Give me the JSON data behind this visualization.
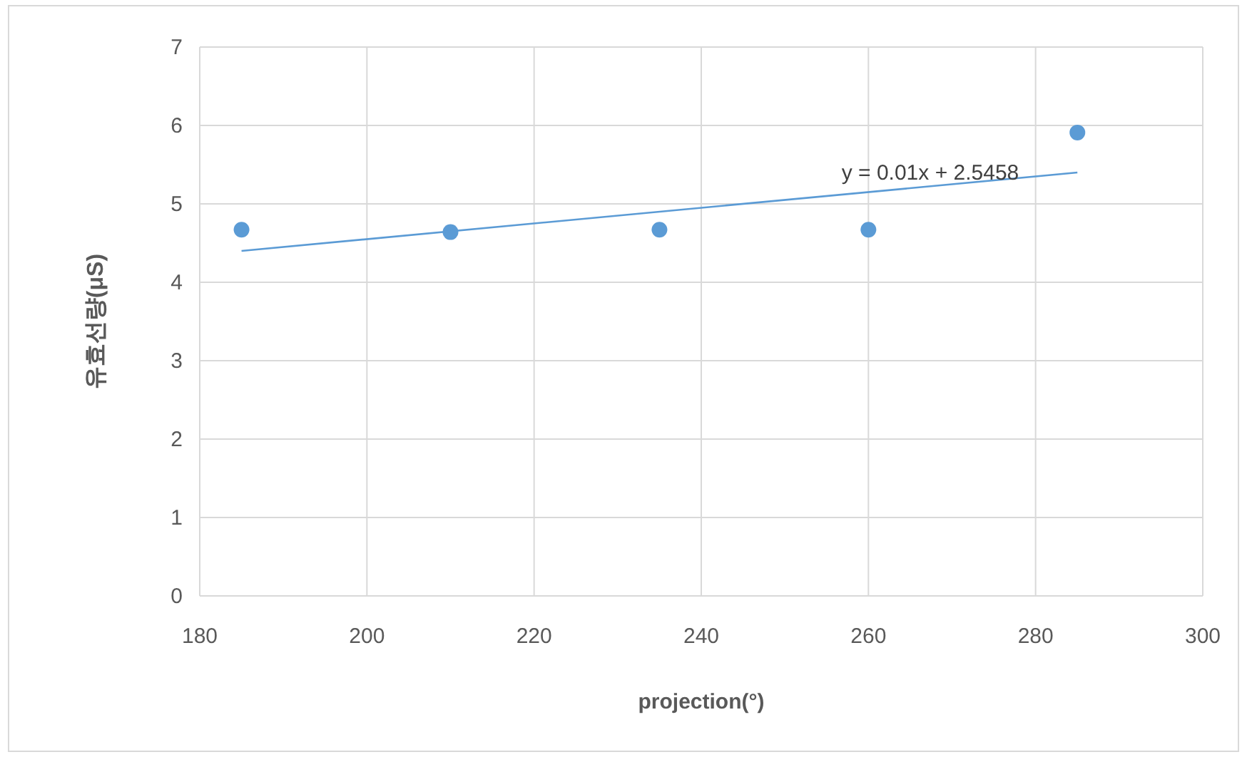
{
  "chart_data": {
    "type": "scatter",
    "xlabel": "projection(°)",
    "ylabel": "유효선량(μS)",
    "x": [
      185,
      210,
      235,
      260,
      285
    ],
    "series": [
      {
        "color": "#5b9bd5",
        "values": [
          4.67,
          4.64,
          4.67,
          4.67,
          5.91
        ]
      },
      {
        "type": "line",
        "color": "#5b9bd5",
        "x": [
          185,
          285
        ],
        "values": [
          4.4,
          5.4
        ],
        "marker": "none",
        "line_style": "solid"
      }
    ],
    "annotations": [
      "y = 0.01x + 2.5458"
    ],
    "xlim": [
      180,
      300
    ],
    "xticks": [
      180,
      200,
      220,
      240,
      260,
      280,
      300
    ],
    "ylim": [
      0,
      7
    ],
    "yticks": [
      0,
      1,
      2,
      3,
      4,
      5,
      6,
      7
    ],
    "grid": true
  }
}
